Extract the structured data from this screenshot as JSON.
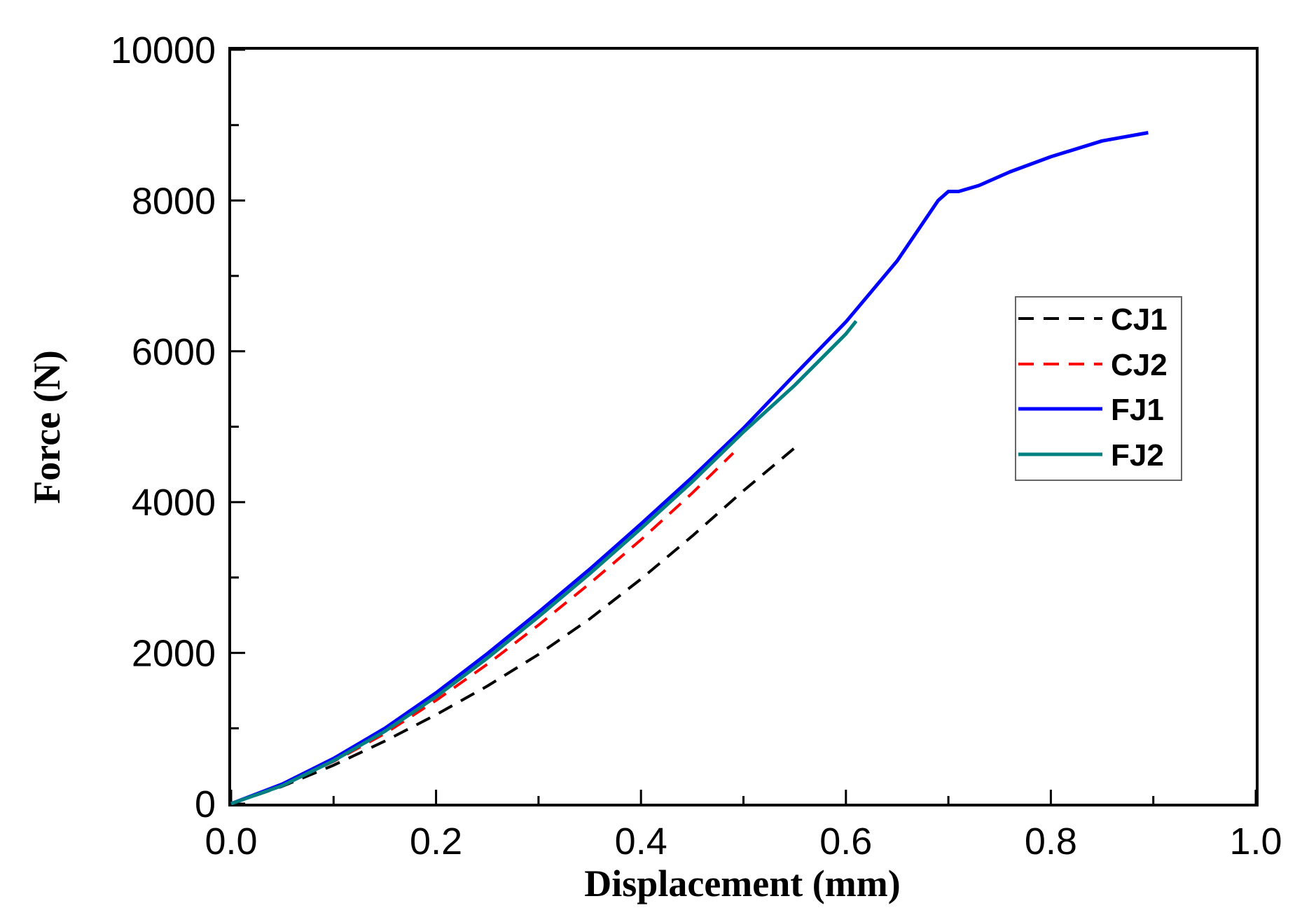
{
  "chart_data": {
    "type": "line",
    "title": "",
    "xlabel": "Displacement (mm)",
    "ylabel": "Force (N)",
    "xlim": [
      0.0,
      1.0
    ],
    "ylim": [
      0,
      10000
    ],
    "x_ticks": [
      0.0,
      0.2,
      0.4,
      0.6,
      0.8,
      1.0
    ],
    "x_tick_labels": [
      "0.0",
      "0.2",
      "0.4",
      "0.6",
      "0.8",
      "1.0"
    ],
    "x_minor_ticks": [
      0.1,
      0.3,
      0.5,
      0.7,
      0.9
    ],
    "y_ticks": [
      0,
      2000,
      4000,
      6000,
      8000,
      10000
    ],
    "y_tick_labels": [
      "0",
      "2000",
      "4000",
      "6000",
      "8000",
      "10000"
    ],
    "y_minor_ticks": [
      1000,
      3000,
      5000,
      7000,
      9000
    ],
    "grid": false,
    "legend_position": "right",
    "series": [
      {
        "name": "CJ1",
        "color": "#000000",
        "style": "dashed",
        "x": [
          0.0,
          0.05,
          0.1,
          0.15,
          0.2,
          0.25,
          0.3,
          0.35,
          0.4,
          0.45,
          0.5,
          0.55
        ],
        "y": [
          0,
          230,
          510,
          830,
          1180,
          1560,
          1980,
          2450,
          2980,
          3550,
          4150,
          4720
        ]
      },
      {
        "name": "CJ2",
        "color": "#ff0000",
        "style": "dashed",
        "x": [
          0.0,
          0.05,
          0.1,
          0.15,
          0.2,
          0.25,
          0.3,
          0.35,
          0.4,
          0.45,
          0.49
        ],
        "y": [
          0,
          250,
          560,
          930,
          1370,
          1850,
          2370,
          2920,
          3500,
          4120,
          4650
        ]
      },
      {
        "name": "FJ1",
        "color": "#0000ff",
        "style": "solid",
        "x": [
          0.0,
          0.05,
          0.1,
          0.15,
          0.2,
          0.25,
          0.3,
          0.35,
          0.4,
          0.45,
          0.5,
          0.55,
          0.6,
          0.65,
          0.69,
          0.7,
          0.71,
          0.73,
          0.76,
          0.8,
          0.85,
          0.895
        ],
        "y": [
          0,
          260,
          600,
          1000,
          1470,
          1990,
          2540,
          3110,
          3710,
          4330,
          4980,
          5690,
          6390,
          7200,
          8000,
          8120,
          8120,
          8200,
          8380,
          8580,
          8790,
          8900
        ]
      },
      {
        "name": "FJ2",
        "color": "#008080",
        "style": "solid",
        "x": [
          0.0,
          0.05,
          0.1,
          0.15,
          0.2,
          0.25,
          0.3,
          0.35,
          0.4,
          0.45,
          0.5,
          0.55,
          0.6,
          0.61
        ],
        "y": [
          0,
          240,
          570,
          960,
          1420,
          1930,
          2480,
          3050,
          3650,
          4270,
          4930,
          5550,
          6230,
          6400
        ]
      }
    ]
  }
}
